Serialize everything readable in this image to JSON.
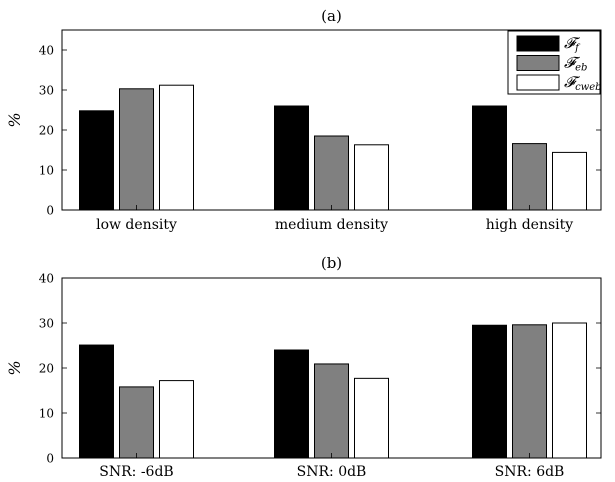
{
  "chart_data": [
    {
      "type": "bar",
      "title": "(a)",
      "ylabel": "%",
      "ylim": [
        0,
        45
      ],
      "yticks": [
        "0",
        "10",
        "20",
        "30",
        "40"
      ],
      "ytick_values": [
        0,
        10,
        20,
        30,
        40
      ],
      "categories": [
        "low density",
        "medium density",
        "high density"
      ],
      "legend_position": "top-right",
      "series": [
        {
          "name": "𝓕_f",
          "label_main": "𝓕",
          "label_sub": "f",
          "color": "#000000",
          "values": [
            24.8,
            26.0,
            26.0
          ]
        },
        {
          "name": "𝓕_eb",
          "label_main": "𝓕",
          "label_sub": "eb",
          "color": "#808080",
          "values": [
            30.3,
            18.5,
            16.6
          ]
        },
        {
          "name": "𝓕_cweb",
          "label_main": "𝓕",
          "label_sub": "cweb",
          "color": "#ffffff",
          "values": [
            31.2,
            16.3,
            14.4
          ]
        }
      ]
    },
    {
      "type": "bar",
      "title": "(b)",
      "ylabel": "%",
      "ylim": [
        0,
        40
      ],
      "yticks": [
        "0",
        "10",
        "20",
        "30",
        "40"
      ],
      "ytick_values": [
        0,
        10,
        20,
        30,
        40
      ],
      "categories": [
        "SNR: -6dB",
        "SNR: 0dB",
        "SNR: 6dB"
      ],
      "series": [
        {
          "color": "#000000",
          "values": [
            25.1,
            24.0,
            29.5
          ]
        },
        {
          "color": "#808080",
          "values": [
            15.8,
            20.9,
            29.6
          ]
        },
        {
          "color": "#ffffff",
          "values": [
            17.2,
            17.7,
            30.0
          ]
        }
      ]
    }
  ]
}
